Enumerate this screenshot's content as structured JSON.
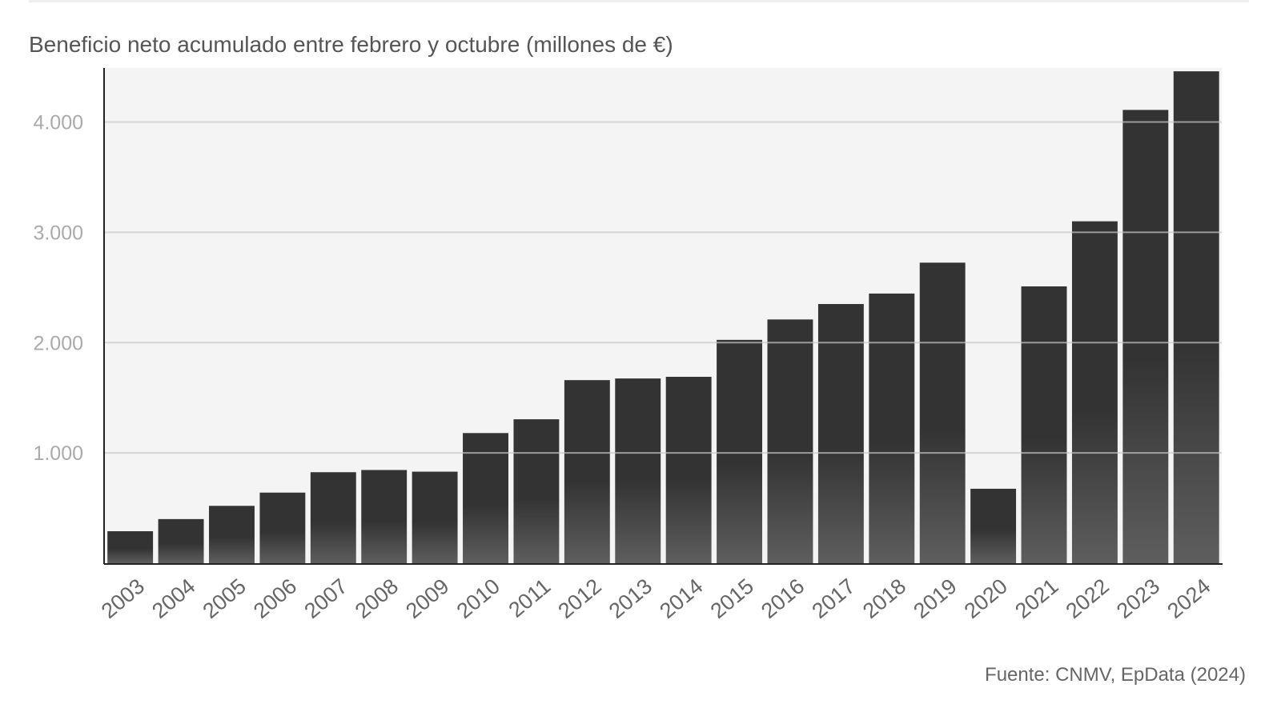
{
  "chart_data": {
    "type": "bar",
    "title": "Beneficio neto acumulado entre febrero y octubre (millones de €)",
    "source": "Fuente: CNMV, EpData (2024)",
    "xlabel": "",
    "ylabel": "",
    "categories": [
      "2003",
      "2004",
      "2005",
      "2006",
      "2007",
      "2008",
      "2009",
      "2010",
      "2011",
      "2012",
      "2013",
      "2014",
      "2015",
      "2016",
      "2017",
      "2018",
      "2019",
      "2020",
      "2021",
      "2022",
      "2023",
      "2024"
    ],
    "values": [
      290,
      400,
      520,
      640,
      825,
      845,
      830,
      1180,
      1305,
      1660,
      1675,
      1690,
      2025,
      2210,
      2350,
      2445,
      2725,
      675,
      2510,
      3100,
      4110,
      4460
    ],
    "ylim": [
      0,
      4490
    ],
    "yticks": [
      1000,
      2000,
      3000,
      4000
    ],
    "ytick_labels": [
      "1.000",
      "2.000",
      "3.000",
      "4.000"
    ],
    "grid": true,
    "bar_color": "#333333"
  }
}
